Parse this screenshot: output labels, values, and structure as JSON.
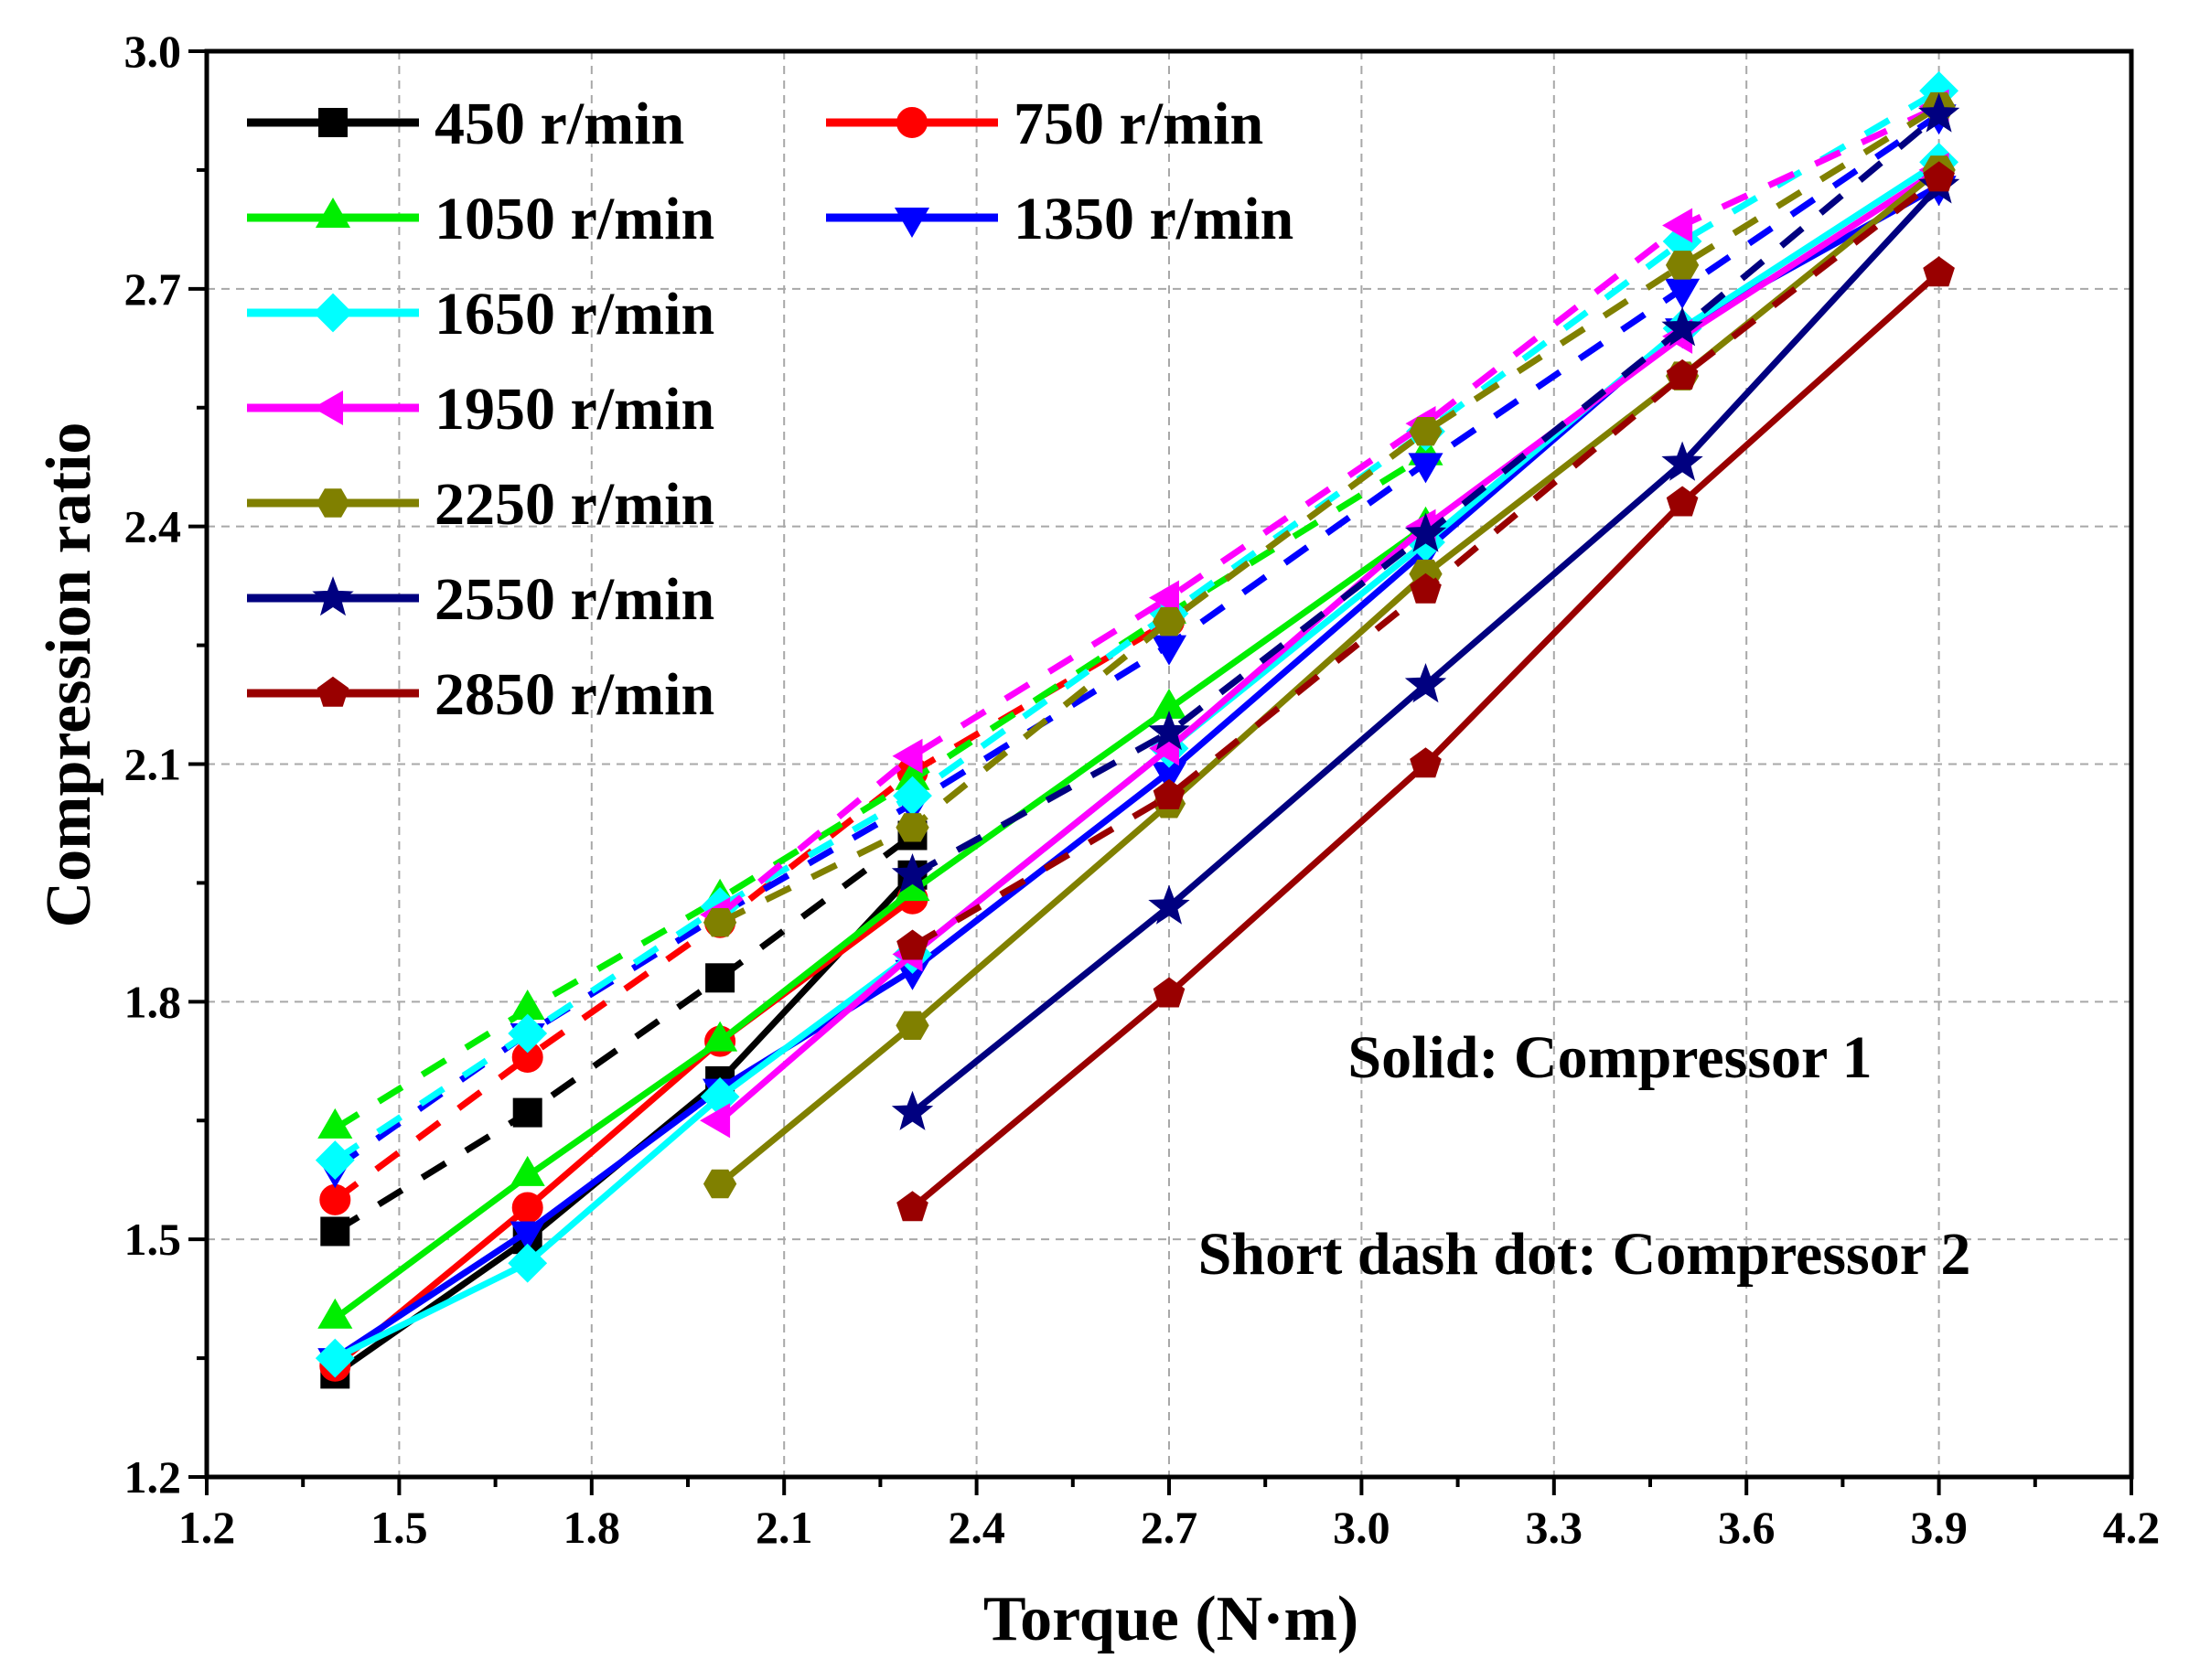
{
  "chart_data": {
    "type": "line",
    "xlabel": "Torque (N·m)",
    "ylabel": "Compression ratio",
    "xlim": [
      1.2,
      4.2
    ],
    "ylim": [
      1.2,
      3.0
    ],
    "xticks": [
      "1.2",
      "1.5",
      "1.8",
      "2.1",
      "2.4",
      "2.7",
      "3.0",
      "3.3",
      "3.6",
      "3.9",
      "4.2"
    ],
    "yticks": [
      "1.2",
      "1.5",
      "1.8",
      "2.1",
      "2.4",
      "2.7",
      "3.0"
    ],
    "grid": true,
    "legend_position": "top-left",
    "annotations": [
      "Solid: Compressor 1",
      "Short dash dot: Compressor 2"
    ],
    "series": [
      {
        "name": "450 r/min",
        "color": "#000000",
        "marker": "square",
        "solid": {
          "x": [
            1.4,
            1.7,
            2.0,
            2.3
          ],
          "y": [
            1.33,
            1.5,
            1.7,
            1.96
          ]
        },
        "dashed": {
          "x": [
            1.4,
            1.7,
            2.0,
            2.3
          ],
          "y": [
            1.51,
            1.66,
            1.83,
            2.01
          ]
        }
      },
      {
        "name": "750 r/min",
        "color": "#ff0000",
        "marker": "circle",
        "solid": {
          "x": [
            1.4,
            1.7,
            2.0,
            2.3
          ],
          "y": [
            1.34,
            1.54,
            1.75,
            1.93
          ]
        },
        "dashed": {
          "x": [
            1.4,
            1.7,
            2.0,
            2.3,
            2.7
          ],
          "y": [
            1.55,
            1.73,
            1.9,
            2.09,
            2.28
          ]
        }
      },
      {
        "name": "1050 r/min",
        "color": "#00ee00",
        "marker": "triangle-up",
        "solid": {
          "x": [
            1.4,
            1.7,
            2.0,
            2.3,
            2.7,
            3.1
          ],
          "y": [
            1.4,
            1.58,
            1.75,
            1.94,
            2.17,
            2.4
          ]
        },
        "dashed": {
          "x": [
            1.4,
            1.7,
            2.0,
            2.3,
            2.7,
            3.1
          ],
          "y": [
            1.64,
            1.79,
            1.93,
            2.08,
            2.29,
            2.49
          ]
        }
      },
      {
        "name": "1350 r/min",
        "color": "#0000ff",
        "marker": "triangle-down",
        "solid": {
          "x": [
            1.4,
            1.7,
            2.0,
            2.3,
            2.7,
            3.1,
            3.5,
            3.9
          ],
          "y": [
            1.35,
            1.51,
            1.69,
            1.84,
            2.09,
            2.37,
            2.65,
            2.83
          ]
        },
        "dashed": {
          "x": [
            1.4,
            1.7,
            2.0,
            2.3,
            2.7,
            3.1,
            3.5,
            3.9
          ],
          "y": [
            1.59,
            1.76,
            1.91,
            2.05,
            2.25,
            2.48,
            2.7,
            2.92
          ]
        }
      },
      {
        "name": "1650 r/min",
        "color": "#00ffff",
        "marker": "diamond",
        "solid": {
          "x": [
            1.4,
            1.7,
            2.0,
            2.3,
            2.7,
            3.1,
            3.5,
            3.9
          ],
          "y": [
            1.35,
            1.47,
            1.68,
            1.86,
            2.12,
            2.38,
            2.65,
            2.86
          ]
        },
        "dashed": {
          "x": [
            1.4,
            1.7,
            2.0,
            2.3,
            2.7,
            3.1,
            3.5,
            3.9
          ],
          "y": [
            1.6,
            1.76,
            1.92,
            2.06,
            2.29,
            2.52,
            2.76,
            2.95
          ]
        }
      },
      {
        "name": "1950 r/min",
        "color": "#ff00ff",
        "marker": "triangle-left",
        "solid": {
          "x": [
            2.0,
            2.3,
            2.7,
            3.1,
            3.5,
            3.9
          ],
          "y": [
            1.65,
            1.86,
            2.12,
            2.4,
            2.64,
            2.85
          ]
        },
        "dashed": {
          "x": [
            2.0,
            2.3,
            2.7,
            3.1,
            3.5,
            3.9
          ],
          "y": [
            1.91,
            2.11,
            2.31,
            2.53,
            2.78,
            2.93
          ]
        }
      },
      {
        "name": "2250 r/min",
        "color": "#808000",
        "marker": "hexagon",
        "solid": {
          "x": [
            2.0,
            2.3,
            2.7,
            3.1,
            3.5,
            3.9
          ],
          "y": [
            1.57,
            1.77,
            2.05,
            2.34,
            2.59,
            2.85
          ]
        },
        "dashed": {
          "x": [
            2.0,
            2.3,
            2.7,
            3.1,
            3.5,
            3.9
          ],
          "y": [
            1.9,
            2.02,
            2.28,
            2.52,
            2.73,
            2.93
          ]
        }
      },
      {
        "name": "2550 r/min",
        "color": "#000080",
        "marker": "star",
        "solid": {
          "x": [
            2.3,
            2.7,
            3.1,
            3.5,
            3.9
          ],
          "y": [
            1.66,
            1.92,
            2.2,
            2.48,
            2.83
          ]
        },
        "dashed": {
          "x": [
            2.3,
            2.7,
            3.1,
            3.5,
            3.9
          ],
          "y": [
            1.96,
            2.14,
            2.39,
            2.65,
            2.92
          ]
        }
      },
      {
        "name": "2850 r/min",
        "color": "#990000",
        "marker": "pentagon",
        "solid": {
          "x": [
            2.3,
            2.7,
            3.1,
            3.5,
            3.9
          ],
          "y": [
            1.54,
            1.81,
            2.1,
            2.43,
            2.72
          ]
        },
        "dashed": {
          "x": [
            2.3,
            2.7,
            3.1,
            3.5,
            3.9
          ],
          "y": [
            1.87,
            2.06,
            2.32,
            2.59,
            2.84
          ]
        }
      }
    ]
  }
}
